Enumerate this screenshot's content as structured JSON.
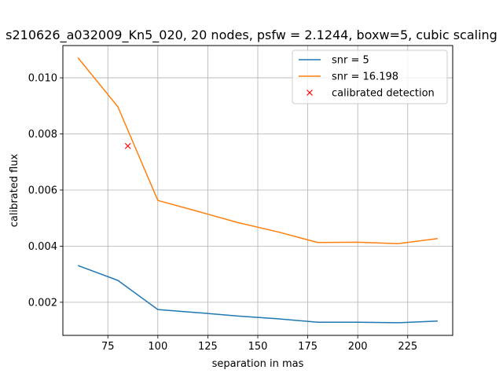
{
  "chart_data": {
    "type": "line",
    "title": "s210626_a032009_Kn5_020, 20 nodes, psfw = 2.1244, boxw=5, cubic scaling",
    "xlabel": "separation in mas",
    "ylabel": "calibrated flux",
    "xlim": [
      52.5,
      247.5
    ],
    "ylim": [
      0.00082,
      0.01115
    ],
    "x_ticks": [
      75,
      100,
      125,
      150,
      175,
      200,
      225
    ],
    "x_tick_labels": [
      "75",
      "100",
      "125",
      "150",
      "175",
      "200",
      "225"
    ],
    "y_ticks": [
      0.002,
      0.004,
      0.006,
      0.008,
      0.01
    ],
    "y_tick_labels": [
      "0.002",
      "0.004",
      "0.006",
      "0.008",
      "0.010"
    ],
    "grid": true,
    "legend_position": "top-right",
    "series": [
      {
        "name": "snr = 5",
        "color": "#1f77b4",
        "style": "line",
        "x": [
          60,
          80,
          100,
          120,
          140,
          160,
          180,
          200,
          220,
          240
        ],
        "y": [
          0.00331,
          0.00278,
          0.00174,
          0.00163,
          0.00151,
          0.00141,
          0.00129,
          0.00129,
          0.00127,
          0.00133
        ]
      },
      {
        "name": "snr = 16.198",
        "color": "#ff7f0e",
        "style": "line",
        "x": [
          60,
          80,
          100,
          120,
          140,
          160,
          180,
          200,
          220,
          240
        ],
        "y": [
          0.01072,
          0.00897,
          0.00563,
          0.00524,
          0.00484,
          0.00451,
          0.00413,
          0.00414,
          0.00409,
          0.00427
        ]
      },
      {
        "name": "calibrated detection",
        "color": "#ff0000",
        "style": "marker-x",
        "x": [
          85
        ],
        "y": [
          0.00757
        ]
      }
    ]
  }
}
